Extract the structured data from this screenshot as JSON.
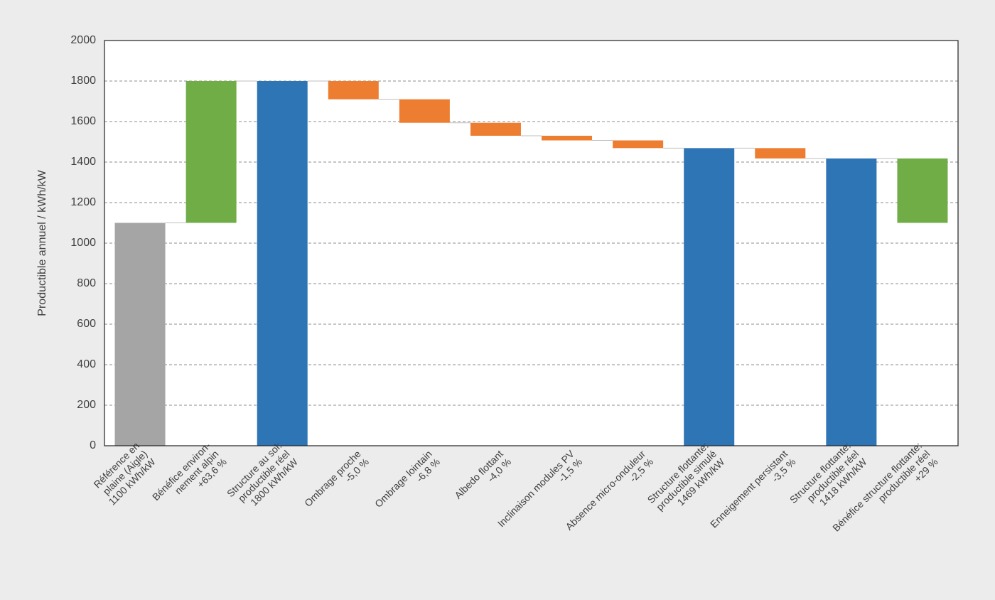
{
  "chart_data": {
    "type": "waterfall",
    "y_label": "Productible annuel / kWh/kW",
    "categories": [
      [
        "Référence en",
        "plaine (Aigle)",
        "1100 kWh/kW"
      ],
      [
        "Bénéfice environ-",
        "nement alpin",
        "+63,6 %"
      ],
      [
        "Structure au sol:",
        "productible réel",
        "1800 kWh/kW"
      ],
      [
        "Ombrage proche",
        "-5,0 %"
      ],
      [
        "Ombrage lointain",
        "-6,8 %"
      ],
      [
        "Albedo flottant",
        "-4,0 %"
      ],
      [
        "Inclinaison modules PV",
        "-1,5 %"
      ],
      [
        "Absence micro-onduleur",
        "-2,5 %"
      ],
      [
        "Structure flottante:",
        "productible simulé",
        "1469 kWh/kW"
      ],
      [
        "Enneigement persistant",
        "-3,5 %"
      ],
      [
        "Structure flottante:",
        "productible réel",
        "1418 kWh/kW"
      ],
      [
        "Bénéfice structure flottante:",
        "productible réel",
        "+29 %"
      ]
    ],
    "values": [
      1100,
      700,
      1800,
      -90,
      -116,
      -64,
      -23,
      -38,
      1469,
      -51,
      1418,
      318
    ],
    "measures": [
      "absolute",
      "relative",
      "total",
      "relative",
      "relative",
      "relative",
      "relative",
      "relative",
      "total",
      "relative",
      "total",
      "gain-over-first"
    ],
    "colors": [
      "#a5a5a5",
      "#70ad47",
      "#2e75b6",
      "#ed7d31",
      "#ed7d31",
      "#ed7d31",
      "#ed7d31",
      "#ed7d31",
      "#2e75b6",
      "#ed7d31",
      "#2e75b6",
      "#70ad47"
    ],
    "ylim": [
      0,
      2000
    ],
    "yticks": [
      0,
      200,
      400,
      600,
      800,
      1000,
      1200,
      1400,
      1600,
      1800,
      2000
    ],
    "grid": true
  }
}
